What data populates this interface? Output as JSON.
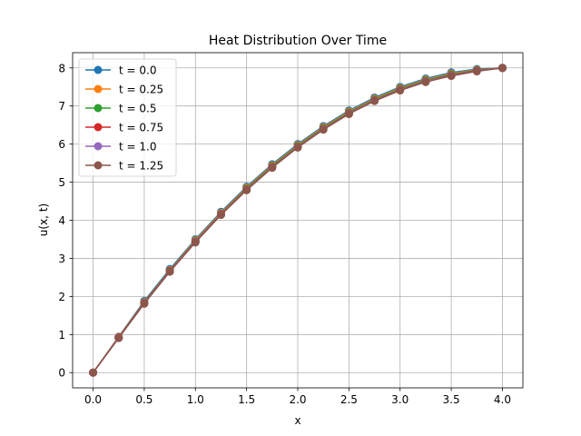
{
  "chart_data": {
    "type": "line",
    "title": "Heat Distribution Over Time",
    "xlabel": "x",
    "ylabel": "u(x, t)",
    "xlim": [
      -0.2,
      4.2
    ],
    "ylim": [
      -0.4,
      8.4
    ],
    "xticks": [
      0.0,
      0.5,
      1.0,
      1.5,
      2.0,
      2.5,
      3.0,
      3.5,
      4.0
    ],
    "xtick_labels": [
      "0.0",
      "0.5",
      "1.0",
      "1.5",
      "2.0",
      "2.5",
      "3.0",
      "3.5",
      "4.0"
    ],
    "yticks": [
      0,
      1,
      2,
      3,
      4,
      5,
      6,
      7,
      8
    ],
    "ytick_labels": [
      "0",
      "1",
      "2",
      "3",
      "4",
      "5",
      "6",
      "7",
      "8"
    ],
    "grid": true,
    "legend_position": "upper-left",
    "x": [
      0.0,
      0.25,
      0.5,
      0.75,
      1.0,
      1.25,
      1.5,
      1.75,
      2.0,
      2.25,
      2.5,
      2.75,
      3.0,
      3.25,
      3.5,
      3.75,
      4.0
    ],
    "series": [
      {
        "name": "t = 0.0",
        "color": "#1f77b4",
        "values": [
          0.0,
          0.94,
          1.88,
          2.72,
          3.5,
          4.22,
          4.88,
          5.47,
          6.0,
          6.47,
          6.88,
          7.22,
          7.5,
          7.72,
          7.88,
          7.97,
          8.0
        ]
      },
      {
        "name": "t = 0.25",
        "color": "#ff7f0e",
        "values": [
          0.0,
          0.93,
          1.85,
          2.69,
          3.47,
          4.19,
          4.85,
          5.44,
          5.97,
          6.44,
          6.85,
          7.19,
          7.47,
          7.69,
          7.85,
          7.95,
          8.0
        ]
      },
      {
        "name": "t = 0.5",
        "color": "#2ca02c",
        "values": [
          0.0,
          0.92,
          1.84,
          2.68,
          3.45,
          4.17,
          4.83,
          5.42,
          5.95,
          6.42,
          6.83,
          7.17,
          7.45,
          7.67,
          7.83,
          7.94,
          8.0
        ]
      },
      {
        "name": "t = 0.75",
        "color": "#d62728",
        "values": [
          0.0,
          0.92,
          1.83,
          2.67,
          3.44,
          4.16,
          4.81,
          5.4,
          5.93,
          6.4,
          6.81,
          7.15,
          7.43,
          7.65,
          7.81,
          7.93,
          8.0
        ]
      },
      {
        "name": "t = 1.0",
        "color": "#9467bd",
        "values": [
          0.0,
          0.91,
          1.82,
          2.66,
          3.43,
          4.15,
          4.8,
          5.39,
          5.92,
          6.39,
          6.8,
          7.14,
          7.42,
          7.64,
          7.8,
          7.92,
          8.0
        ]
      },
      {
        "name": "t = 1.25",
        "color": "#8c564b",
        "values": [
          0.0,
          0.91,
          1.81,
          2.65,
          3.42,
          4.14,
          4.79,
          5.38,
          5.91,
          6.38,
          6.79,
          7.13,
          7.41,
          7.63,
          7.79,
          7.91,
          8.0
        ]
      }
    ]
  }
}
